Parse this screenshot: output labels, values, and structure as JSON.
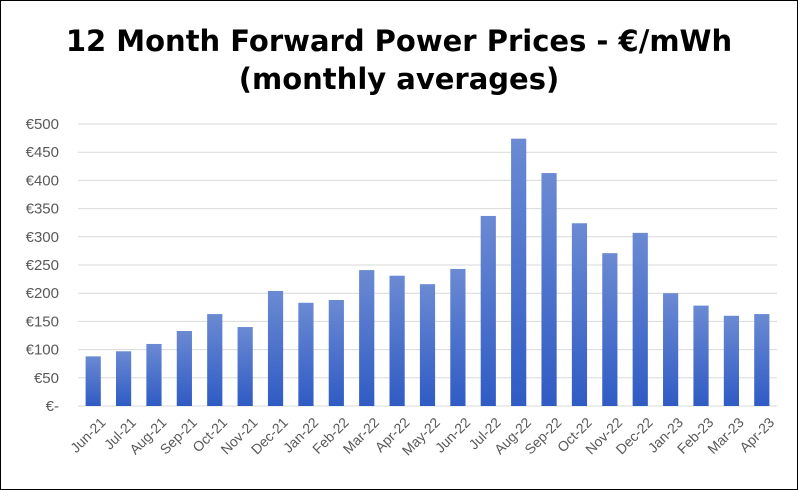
{
  "chart_data": {
    "type": "bar",
    "title": "12 Month Forward Power Prices - €/mWh",
    "subtitle": "(monthly averages)",
    "xlabel": "",
    "ylabel": "",
    "categories": [
      "Jun-21",
      "Jul-21",
      "Aug-21",
      "Sep-21",
      "Oct-21",
      "Nov-21",
      "Dec-21",
      "Jan-22",
      "Feb-22",
      "Mar-22",
      "Apr-22",
      "May-22",
      "Jun-22",
      "Jul-22",
      "Aug-22",
      "Sep-22",
      "Oct-22",
      "Nov-22",
      "Dec-22",
      "Jan-23",
      "Feb-23",
      "Mar-23",
      "Apr-23"
    ],
    "values": [
      88,
      97,
      110,
      133,
      163,
      140,
      204,
      183,
      188,
      241,
      231,
      216,
      243,
      337,
      474,
      413,
      324,
      271,
      307,
      200,
      178,
      160,
      163
    ],
    "ylim": [
      0,
      500
    ],
    "yticks": [
      0,
      50,
      100,
      150,
      200,
      250,
      300,
      350,
      400,
      450,
      500
    ],
    "ytick_labels": [
      "€-",
      "€50",
      "€100",
      "€150",
      "€200",
      "€250",
      "€300",
      "€350",
      "€400",
      "€450",
      "€500"
    ],
    "grid": true,
    "legend": "none",
    "bar_color_top": "#6b8ad3",
    "bar_color_bottom": "#2f5bc4",
    "grid_color": "#d9d9d9",
    "tick_color": "#595959"
  }
}
